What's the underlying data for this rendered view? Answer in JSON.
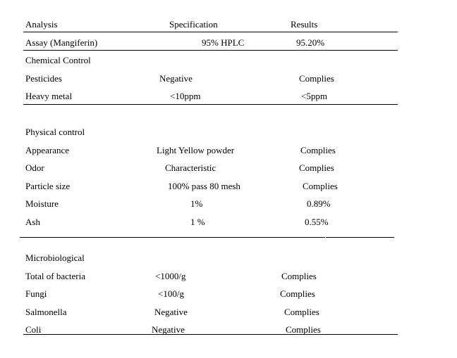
{
  "header": {
    "analysis": "Analysis",
    "specification": "Specification",
    "results": "Results"
  },
  "assay": {
    "analysis": "Assay (Mangiferin)",
    "specification": "95% HPLC",
    "result": "95.20%"
  },
  "chemical_control": {
    "title": "Chemical Control",
    "rows": [
      {
        "analysis": "Pesticides",
        "specification": "Negative",
        "result": "Complies"
      },
      {
        "analysis": "Heavy metal",
        "specification": "<10ppm",
        "result": "<5ppm"
      }
    ]
  },
  "physical_control": {
    "title": "Physical control",
    "rows": [
      {
        "analysis": "Appearance",
        "specification": "Light Yellow powder",
        "result": "Complies"
      },
      {
        "analysis": "Odor",
        "specification": "Characteristic",
        "result": "Complies"
      },
      {
        "analysis": "Particle size",
        "specification": "100% pass 80 mesh",
        "result": "Complies"
      },
      {
        "analysis": "Moisture",
        "specification": "1%",
        "result": "0.89%"
      },
      {
        "analysis": "Ash",
        "specification": "1 %",
        "result": "0.55%"
      }
    ]
  },
  "microbiological": {
    "title": "Microbiological",
    "rows": [
      {
        "analysis": "Total of bacteria",
        "specification": "<1000/g",
        "result": "Complies"
      },
      {
        "analysis": "Fungi",
        "specification": "<100/g",
        "result": "Complies"
      },
      {
        "analysis": "Salmonella",
        "specification": "Negative",
        "result": "Complies"
      },
      {
        "analysis": "Coli",
        "specification": "Negative",
        "result": "Complies"
      }
    ]
  }
}
